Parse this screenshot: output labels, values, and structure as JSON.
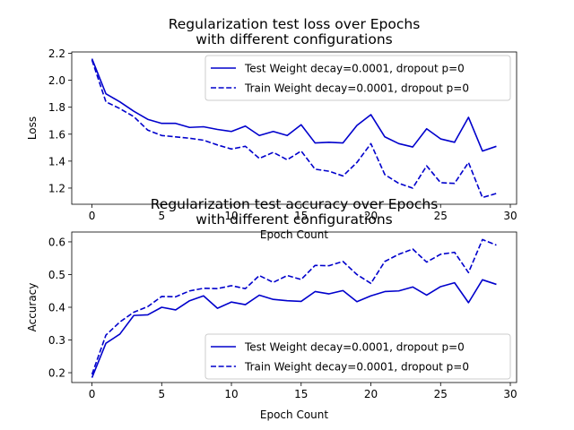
{
  "chart_data": [
    {
      "type": "line",
      "title": "Regularization test loss over Epochs\nwith different configurations",
      "xlabel": "Epoch Count",
      "ylabel": "Loss",
      "xlim": [
        -1.45,
        30.45
      ],
      "ylim": [
        1.08,
        2.21
      ],
      "xticks": [
        0,
        5,
        10,
        15,
        20,
        25,
        30
      ],
      "yticks": [
        1.2,
        1.4,
        1.6,
        1.8,
        2.0,
        2.2
      ],
      "ytick_labels": [
        "1.2",
        "1.4",
        "1.6",
        "1.8",
        "2.0",
        "2.2"
      ],
      "legend_position": "upper-right",
      "x": [
        0,
        1,
        2,
        3,
        4,
        5,
        6,
        7,
        8,
        9,
        10,
        11,
        12,
        13,
        14,
        15,
        16,
        17,
        18,
        19,
        20,
        21,
        22,
        23,
        24,
        25,
        26,
        27,
        28,
        29
      ],
      "series": [
        {
          "name": "Test Weight decay=0.0001, dropout p=0",
          "style": "solid",
          "color": "#0000cc",
          "values": [
            2.16,
            1.9,
            1.84,
            1.77,
            1.71,
            1.68,
            1.68,
            1.65,
            1.655,
            1.635,
            1.62,
            1.66,
            1.59,
            1.62,
            1.59,
            1.67,
            1.535,
            1.54,
            1.535,
            1.665,
            1.745,
            1.58,
            1.53,
            1.505,
            1.64,
            1.565,
            1.54,
            1.725,
            1.475,
            1.51
          ]
        },
        {
          "name": "Train Weight decay=0.0001, dropout p=0",
          "style": "dashed",
          "color": "#0000cc",
          "values": [
            2.15,
            1.84,
            1.79,
            1.73,
            1.63,
            1.59,
            1.58,
            1.57,
            1.555,
            1.52,
            1.49,
            1.51,
            1.42,
            1.465,
            1.41,
            1.475,
            1.34,
            1.325,
            1.29,
            1.39,
            1.53,
            1.3,
            1.235,
            1.2,
            1.365,
            1.24,
            1.235,
            1.39,
            1.13,
            1.16
          ]
        }
      ]
    },
    {
      "type": "line",
      "title": "Regularization test accuracy over Epochs\nwith different configurations",
      "xlabel": "Epoch Count",
      "ylabel": "Accuracy",
      "xlim": [
        -1.45,
        30.45
      ],
      "ylim": [
        0.17,
        0.63
      ],
      "xticks": [
        0,
        5,
        10,
        15,
        20,
        25,
        30
      ],
      "yticks": [
        0.2,
        0.3,
        0.4,
        0.5,
        0.6
      ],
      "ytick_labels": [
        "0.2",
        "0.3",
        "0.4",
        "0.5",
        "0.6"
      ],
      "legend_position": "lower-right",
      "x": [
        0,
        1,
        2,
        3,
        4,
        5,
        6,
        7,
        8,
        9,
        10,
        11,
        12,
        13,
        14,
        15,
        16,
        17,
        18,
        19,
        20,
        21,
        22,
        23,
        24,
        25,
        26,
        27,
        28,
        29
      ],
      "series": [
        {
          "name": "Test Weight decay=0.0001, dropout p=0",
          "style": "solid",
          "color": "#0000cc",
          "values": [
            0.185,
            0.29,
            0.318,
            0.375,
            0.377,
            0.4,
            0.392,
            0.42,
            0.435,
            0.397,
            0.416,
            0.408,
            0.437,
            0.424,
            0.42,
            0.418,
            0.448,
            0.441,
            0.451,
            0.417,
            0.435,
            0.448,
            0.45,
            0.462,
            0.437,
            0.463,
            0.475,
            0.414,
            0.484,
            0.47
          ]
        },
        {
          "name": "Train Weight decay=0.0001, dropout p=0",
          "style": "dashed",
          "color": "#0000cc",
          "values": [
            0.195,
            0.315,
            0.355,
            0.385,
            0.402,
            0.433,
            0.432,
            0.45,
            0.458,
            0.457,
            0.466,
            0.457,
            0.497,
            0.476,
            0.497,
            0.485,
            0.528,
            0.527,
            0.54,
            0.5,
            0.473,
            0.54,
            0.562,
            0.578,
            0.538,
            0.562,
            0.568,
            0.506,
            0.607,
            0.59
          ]
        }
      ]
    }
  ]
}
